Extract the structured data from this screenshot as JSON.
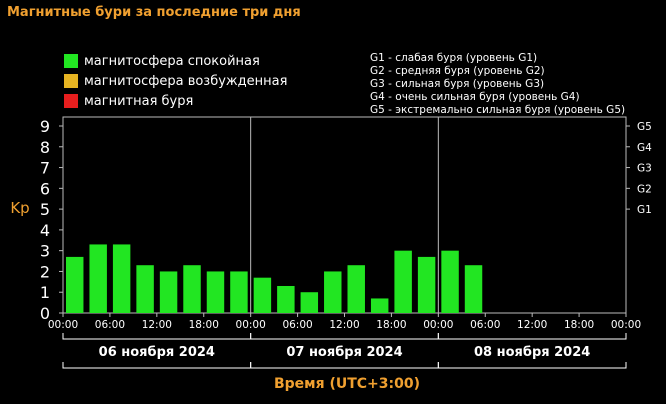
{
  "title": "Магнитные бури за последние три дня",
  "legend": [
    {
      "label": "магнитосфера спокойная",
      "color": "#22e622"
    },
    {
      "label": "магнитосфера возбужденная",
      "color": "#e6b422"
    },
    {
      "label": "магнитная буря",
      "color": "#e61e1e"
    }
  ],
  "storm_scale": [
    "G1 - слабая буря (уровень G1)",
    "G2 - средняя буря (уровень G2)",
    "G3 - сильная буря (уровень G3)",
    "G4 - очень сильная буря (уровень G4)",
    "G5 - экстремально сильная буря (уровень G5)"
  ],
  "chart_data": {
    "type": "bar",
    "ylabel": "Kp",
    "xlabel": "Время (UTC+3:00)",
    "ylim": [
      0,
      9
    ],
    "y_ticks": [
      "0",
      "1",
      "2",
      "3",
      "4",
      "5",
      "6",
      "7",
      "8",
      "9"
    ],
    "right_axis_labels": [
      "G1",
      "G2",
      "G3",
      "G4",
      "G5"
    ],
    "right_axis_levels": [
      5,
      6,
      7,
      8,
      9
    ],
    "x_tick_labels": [
      "00:00",
      "06:00",
      "12:00",
      "18:00",
      "00:00",
      "06:00",
      "12:00",
      "18:00",
      "00:00",
      "06:00",
      "12:00",
      "18:00",
      "00:00"
    ],
    "days": [
      "06 ноября 2024",
      "07 ноября 2024",
      "08 ноября 2024"
    ],
    "bar_color": "#22e622",
    "values": [
      2.7,
      3.3,
      3.3,
      2.3,
      2.0,
      2.3,
      2.0,
      2.0,
      1.7,
      1.3,
      1.0,
      2.0,
      2.3,
      0.7,
      3.0,
      2.7,
      3.0,
      2.3
    ],
    "total_slots": 24,
    "grid": false
  }
}
